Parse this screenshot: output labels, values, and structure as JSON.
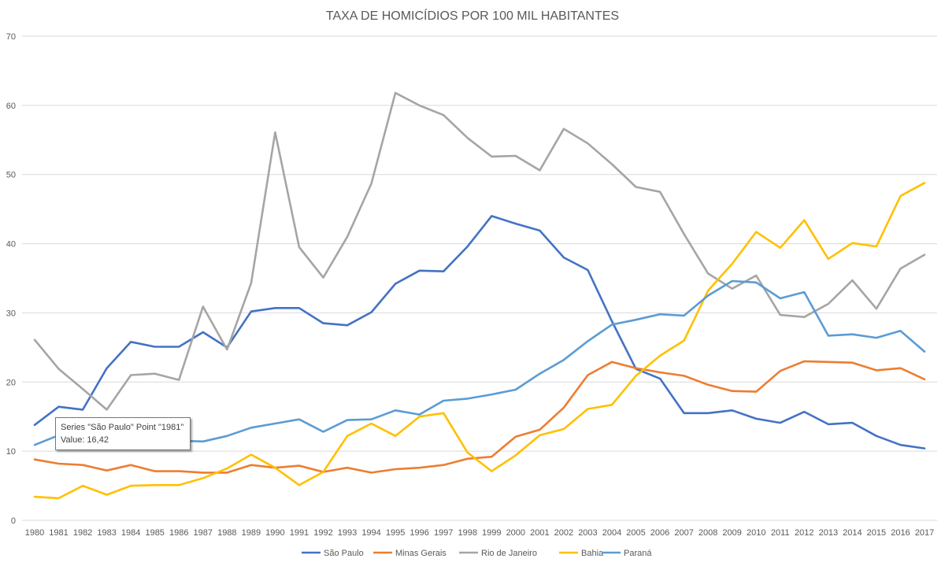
{
  "chart_data": {
    "type": "line",
    "title": "TAXA DE HOMICÍDIOS POR 100 MIL HABITANTES",
    "ylim": [
      0,
      70
    ],
    "yticks": [
      0,
      10,
      20,
      30,
      40,
      50,
      60,
      70
    ],
    "grid": true,
    "legend_position": "bottom",
    "categories": [
      "1980",
      "1981",
      "1982",
      "1983",
      "1984",
      "1985",
      "1986",
      "1987",
      "1988",
      "1989",
      "1990",
      "1991",
      "1992",
      "1993",
      "1994",
      "1995",
      "1996",
      "1997",
      "1998",
      "1999",
      "2000",
      "2001",
      "2002",
      "2003",
      "2004",
      "2005",
      "2006",
      "2007",
      "2008",
      "2009",
      "2010",
      "2011",
      "2012",
      "2013",
      "2014",
      "2015",
      "2016",
      "2017"
    ],
    "series": [
      {
        "name": "São Paulo",
        "color": "#4472c4",
        "values": [
          13.8,
          16.42,
          16.0,
          22.0,
          25.8,
          25.1,
          25.1,
          27.2,
          25.0,
          30.2,
          30.7,
          30.7,
          28.5,
          28.2,
          30.1,
          34.2,
          36.1,
          36.0,
          39.6,
          44.0,
          42.9,
          41.9,
          38.0,
          36.2,
          28.8,
          21.9,
          20.5,
          15.5,
          15.5,
          15.9,
          14.7,
          14.1,
          15.7,
          13.9,
          14.1,
          12.2,
          10.9,
          10.4
        ]
      },
      {
        "name": "Minas Gerais",
        "color": "#ed7d31",
        "values": [
          8.8,
          8.2,
          8.0,
          7.2,
          8.0,
          7.1,
          7.1,
          6.9,
          6.9,
          8.0,
          7.6,
          7.9,
          7.0,
          7.6,
          6.9,
          7.4,
          7.6,
          8.0,
          8.9,
          9.2,
          12.1,
          13.1,
          16.3,
          21.0,
          22.9,
          22.0,
          21.4,
          20.9,
          19.6,
          18.7,
          18.6,
          21.6,
          23.0,
          22.9,
          22.8,
          21.7,
          22.0,
          20.4
        ]
      },
      {
        "name": "Rio de Janeiro",
        "color": "#a5a5a5",
        "values": [
          26.1,
          21.9,
          19.0,
          16.0,
          21.0,
          21.2,
          20.3,
          30.9,
          24.7,
          34.3,
          56.1,
          39.5,
          35.1,
          41.0,
          48.7,
          61.8,
          60.0,
          58.6,
          55.3,
          52.6,
          52.7,
          50.6,
          56.6,
          54.5,
          51.5,
          48.2,
          47.5,
          41.4,
          35.7,
          33.5,
          35.4,
          29.7,
          29.4,
          31.3,
          34.7,
          30.6,
          36.4,
          38.4
        ]
      },
      {
        "name": "Bahia",
        "color": "#ffc000",
        "values": [
          3.4,
          3.2,
          5.0,
          3.7,
          5.0,
          5.1,
          5.1,
          6.1,
          7.5,
          9.5,
          7.6,
          5.1,
          7.0,
          12.2,
          14.0,
          12.2,
          15.0,
          15.5,
          9.8,
          7.1,
          9.4,
          12.3,
          13.2,
          16.1,
          16.7,
          20.9,
          23.8,
          26.0,
          33.2,
          37.1,
          41.7,
          39.4,
          43.4,
          37.8,
          40.1,
          39.6,
          46.9,
          48.8
        ]
      },
      {
        "name": "Paraná",
        "color": "#5b9bd5",
        "values": [
          10.9,
          12.3,
          13.8,
          14.7,
          13.5,
          12.8,
          11.5,
          11.4,
          12.2,
          13.4,
          14.0,
          14.6,
          12.8,
          14.5,
          14.6,
          15.9,
          15.3,
          17.3,
          17.6,
          18.2,
          18.9,
          21.2,
          23.2,
          25.9,
          28.3,
          29.0,
          29.8,
          29.6,
          32.5,
          34.6,
          34.4,
          32.1,
          33.0,
          26.7,
          26.9,
          26.4,
          27.4,
          24.4
        ]
      }
    ]
  },
  "tooltip": {
    "line1": "Series \"São Paulo\" Point \"1981\"",
    "line2": "Value: 16,42"
  }
}
